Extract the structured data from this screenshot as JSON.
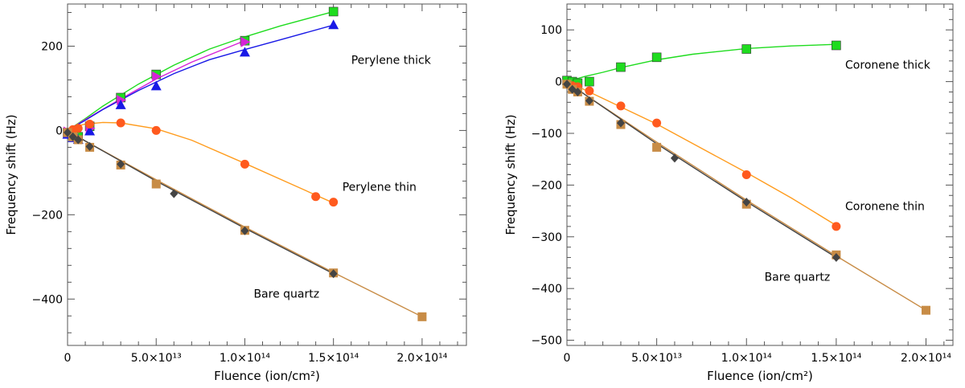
{
  "colors": {
    "green": "#1fdc1f",
    "blue": "#1919e6",
    "magenta": "#d624d6",
    "orange": "#ff9c1e",
    "red_marker": "#ff5a1e",
    "tan": "#c88c46",
    "dark": "#444444"
  },
  "chart_data": [
    {
      "type": "scatter",
      "xlabel": "Fluence (ion/cm²)",
      "ylabel": "Frequency shift (Hz)",
      "xlim": [
        0,
        225000000000000.0
      ],
      "ylim": [
        -510,
        300
      ],
      "x_ticks": [
        0,
        50000000000000.0,
        100000000000000.0,
        150000000000000.0,
        200000000000000.0
      ],
      "x_tick_labels": [
        "0",
        "5.0×10¹³",
        "1.0×10¹⁴",
        "1.5×10¹⁴",
        "2.0×10¹⁴"
      ],
      "y_ticks": [
        -400,
        -200,
        0,
        200
      ],
      "y_tick_labels": [
        "−400",
        "−200",
        "0",
        "200"
      ],
      "annotations": [
        {
          "text": "Perylene thick",
          "x": 160000000000000.0,
          "y": 158
        },
        {
          "text": "Perylene thin",
          "x": 155000000000000.0,
          "y": -143
        },
        {
          "text": "Bare quartz",
          "x": 105000000000000.0,
          "y": -397
        }
      ],
      "series": [
        {
          "color": "green",
          "marker": "square",
          "x": [
            0,
            3000000000000.0,
            6000000000000.0,
            12500000000000.0,
            30000000000000.0,
            50000000000000.0,
            100000000000000.0,
            150000000000000.0
          ],
          "y": [
            -5,
            -12,
            -15,
            10,
            78,
            133,
            213,
            282
          ],
          "fit": [
            [
              0,
              0
            ],
            [
              10000000000000.0,
              28
            ],
            [
              20000000000000.0,
              58
            ],
            [
              40000000000000.0,
              110
            ],
            [
              60000000000000.0,
              155
            ],
            [
              80000000000000.0,
              193
            ],
            [
              100000000000000.0,
              222
            ],
            [
              120000000000000.0,
              248
            ],
            [
              150000000000000.0,
              282
            ]
          ]
        },
        {
          "color": "magenta",
          "marker": "triangle-right",
          "x": [
            0,
            3000000000000.0,
            12500000000000.0,
            30000000000000.0,
            50000000000000.0,
            100000000000000.0
          ],
          "y": [
            -3,
            -8,
            5,
            72,
            128,
            210
          ],
          "fit": [
            [
              0,
              0
            ],
            [
              10000000000000.0,
              26
            ],
            [
              30000000000000.0,
              75
            ],
            [
              50000000000000.0,
              122
            ],
            [
              70000000000000.0,
              162
            ],
            [
              100000000000000.0,
              213
            ]
          ]
        },
        {
          "color": "blue",
          "marker": "triangle-up",
          "x": [
            0,
            3000000000000.0,
            6000000000000.0,
            12500000000000.0,
            30000000000000.0,
            50000000000000.0,
            100000000000000.0,
            150000000000000.0
          ],
          "y": [
            -10,
            -18,
            -22,
            -2,
            60,
            105,
            185,
            250
          ],
          "fit": [
            [
              0,
              0
            ],
            [
              10000000000000.0,
              24
            ],
            [
              20000000000000.0,
              50
            ],
            [
              40000000000000.0,
              95
            ],
            [
              60000000000000.0,
              135
            ],
            [
              80000000000000.0,
              168
            ],
            [
              100000000000000.0,
              192
            ],
            [
              120000000000000.0,
              215
            ],
            [
              150000000000000.0,
              250
            ]
          ]
        },
        {
          "color": "red_marker",
          "line_color": "orange",
          "marker": "circle",
          "x": [
            0,
            3000000000000.0,
            6000000000000.0,
            12500000000000.0,
            30000000000000.0,
            50000000000000.0,
            100000000000000.0,
            140000000000000.0,
            150000000000000.0
          ],
          "y": [
            -5,
            2,
            5,
            15,
            18,
            0,
            -80,
            -157,
            -170
          ],
          "fit": [
            [
              0,
              0
            ],
            [
              5000000000000.0,
              10
            ],
            [
              10000000000000.0,
              15
            ],
            [
              20000000000000.0,
              19
            ],
            [
              30000000000000.0,
              18
            ],
            [
              50000000000000.0,
              4
            ],
            [
              70000000000000.0,
              -23
            ],
            [
              100000000000000.0,
              -78
            ],
            [
              125000000000000.0,
              -125
            ],
            [
              150000000000000.0,
              -172
            ]
          ]
        },
        {
          "color": "tan",
          "marker": "square",
          "x": [
            0,
            3000000000000.0,
            6000000000000.0,
            12500000000000.0,
            30000000000000.0,
            50000000000000.0,
            100000000000000.0,
            150000000000000.0,
            200000000000000.0
          ],
          "y": [
            -5,
            -15,
            -22,
            -40,
            -82,
            -127,
            -237,
            -338,
            -442
          ],
          "fit": [
            [
              0,
              0
            ],
            [
              10000000000000.0,
              -25
            ],
            [
              50000000000000.0,
              -117
            ],
            [
              100000000000000.0,
              -229
            ],
            [
              150000000000000.0,
              -337
            ],
            [
              200000000000000.0,
              -442
            ]
          ]
        },
        {
          "color": "dark",
          "marker": "diamond",
          "x": [
            0,
            3000000000000.0,
            6000000000000.0,
            12500000000000.0,
            30000000000000.0,
            60000000000000.0,
            100000000000000.0,
            150000000000000.0
          ],
          "y": [
            -5,
            -15,
            -22,
            -38,
            -80,
            -150,
            -238,
            -340
          ],
          "fit": [
            [
              0,
              0
            ],
            [
              10000000000000.0,
              -25
            ],
            [
              50000000000000.0,
              -120
            ],
            [
              100000000000000.0,
              -232
            ],
            [
              150000000000000.0,
              -340
            ]
          ]
        }
      ]
    },
    {
      "type": "scatter",
      "xlabel": "Fluence (ion/cm²)",
      "ylabel": "Frequency shift (Hz)",
      "xlim": [
        0,
        215000000000000.0
      ],
      "ylim": [
        -510,
        150
      ],
      "x_ticks": [
        0,
        50000000000000.0,
        100000000000000.0,
        150000000000000.0,
        200000000000000.0
      ],
      "x_tick_labels": [
        "0",
        "5.0×10¹³",
        "1.0×10¹⁴",
        "1.5×10¹⁴",
        "2.0×10¹⁴"
      ],
      "y_ticks": [
        -500,
        -400,
        -300,
        -200,
        -100,
        0,
        100
      ],
      "y_tick_labels": [
        "−500",
        "−400",
        "−300",
        "−200",
        "−100",
        "0",
        "100"
      ],
      "annotations": [
        {
          "text": "Coronene thick",
          "x": 155000000000000.0,
          "y": 25
        },
        {
          "text": "Coronene thin",
          "x": 155000000000000.0,
          "y": -248
        },
        {
          "text": "Bare quartz",
          "x": 110000000000000.0,
          "y": -385
        }
      ],
      "series": [
        {
          "color": "green",
          "marker": "square",
          "x": [
            0,
            3000000000000.0,
            6000000000000.0,
            12500000000000.0,
            30000000000000.0,
            50000000000000.0,
            100000000000000.0,
            150000000000000.0
          ],
          "y": [
            2,
            0,
            -3,
            0,
            28,
            47,
            63,
            70
          ],
          "fit": [
            [
              0,
              0
            ],
            [
              10000000000000.0,
              10
            ],
            [
              20000000000000.0,
              18
            ],
            [
              30000000000000.0,
              27
            ],
            [
              50000000000000.0,
              42
            ],
            [
              70000000000000.0,
              53
            ],
            [
              100000000000000.0,
              64
            ],
            [
              125000000000000.0,
              69
            ],
            [
              150000000000000.0,
              72
            ]
          ]
        },
        {
          "color": "red_marker",
          "line_color": "orange",
          "marker": "circle",
          "x": [
            0,
            3000000000000.0,
            6000000000000.0,
            12500000000000.0,
            30000000000000.0,
            50000000000000.0,
            100000000000000.0,
            150000000000000.0
          ],
          "y": [
            -5,
            -8,
            -10,
            -18,
            -47,
            -80,
            -180,
            -280
          ],
          "fit": [
            [
              0,
              0
            ],
            [
              10000000000000.0,
              -16
            ],
            [
              30000000000000.0,
              -49
            ],
            [
              50000000000000.0,
              -82
            ],
            [
              100000000000000.0,
              -176
            ],
            [
              125000000000000.0,
              -225
            ],
            [
              150000000000000.0,
              -278
            ]
          ]
        },
        {
          "color": "tan",
          "marker": "square",
          "x": [
            0,
            3000000000000.0,
            6000000000000.0,
            12500000000000.0,
            30000000000000.0,
            50000000000000.0,
            100000000000000.0,
            150000000000000.0,
            200000000000000.0
          ],
          "y": [
            -5,
            -15,
            -20,
            -38,
            -83,
            -127,
            -237,
            -335,
            -442
          ],
          "fit": [
            [
              0,
              0
            ],
            [
              10000000000000.0,
              -25
            ],
            [
              50000000000000.0,
              -117
            ],
            [
              100000000000000.0,
              -229
            ],
            [
              150000000000000.0,
              -337
            ],
            [
              200000000000000.0,
              -442
            ]
          ]
        },
        {
          "color": "dark",
          "marker": "diamond",
          "x": [
            0,
            3000000000000.0,
            6000000000000.0,
            12500000000000.0,
            30000000000000.0,
            60000000000000.0,
            100000000000000.0,
            150000000000000.0
          ],
          "y": [
            -5,
            -15,
            -20,
            -37,
            -80,
            -148,
            -233,
            -340
          ],
          "fit": [
            [
              0,
              0
            ],
            [
              10000000000000.0,
              -25
            ],
            [
              50000000000000.0,
              -120
            ],
            [
              100000000000000.0,
              -232
            ],
            [
              150000000000000.0,
              -340
            ]
          ]
        }
      ]
    }
  ]
}
